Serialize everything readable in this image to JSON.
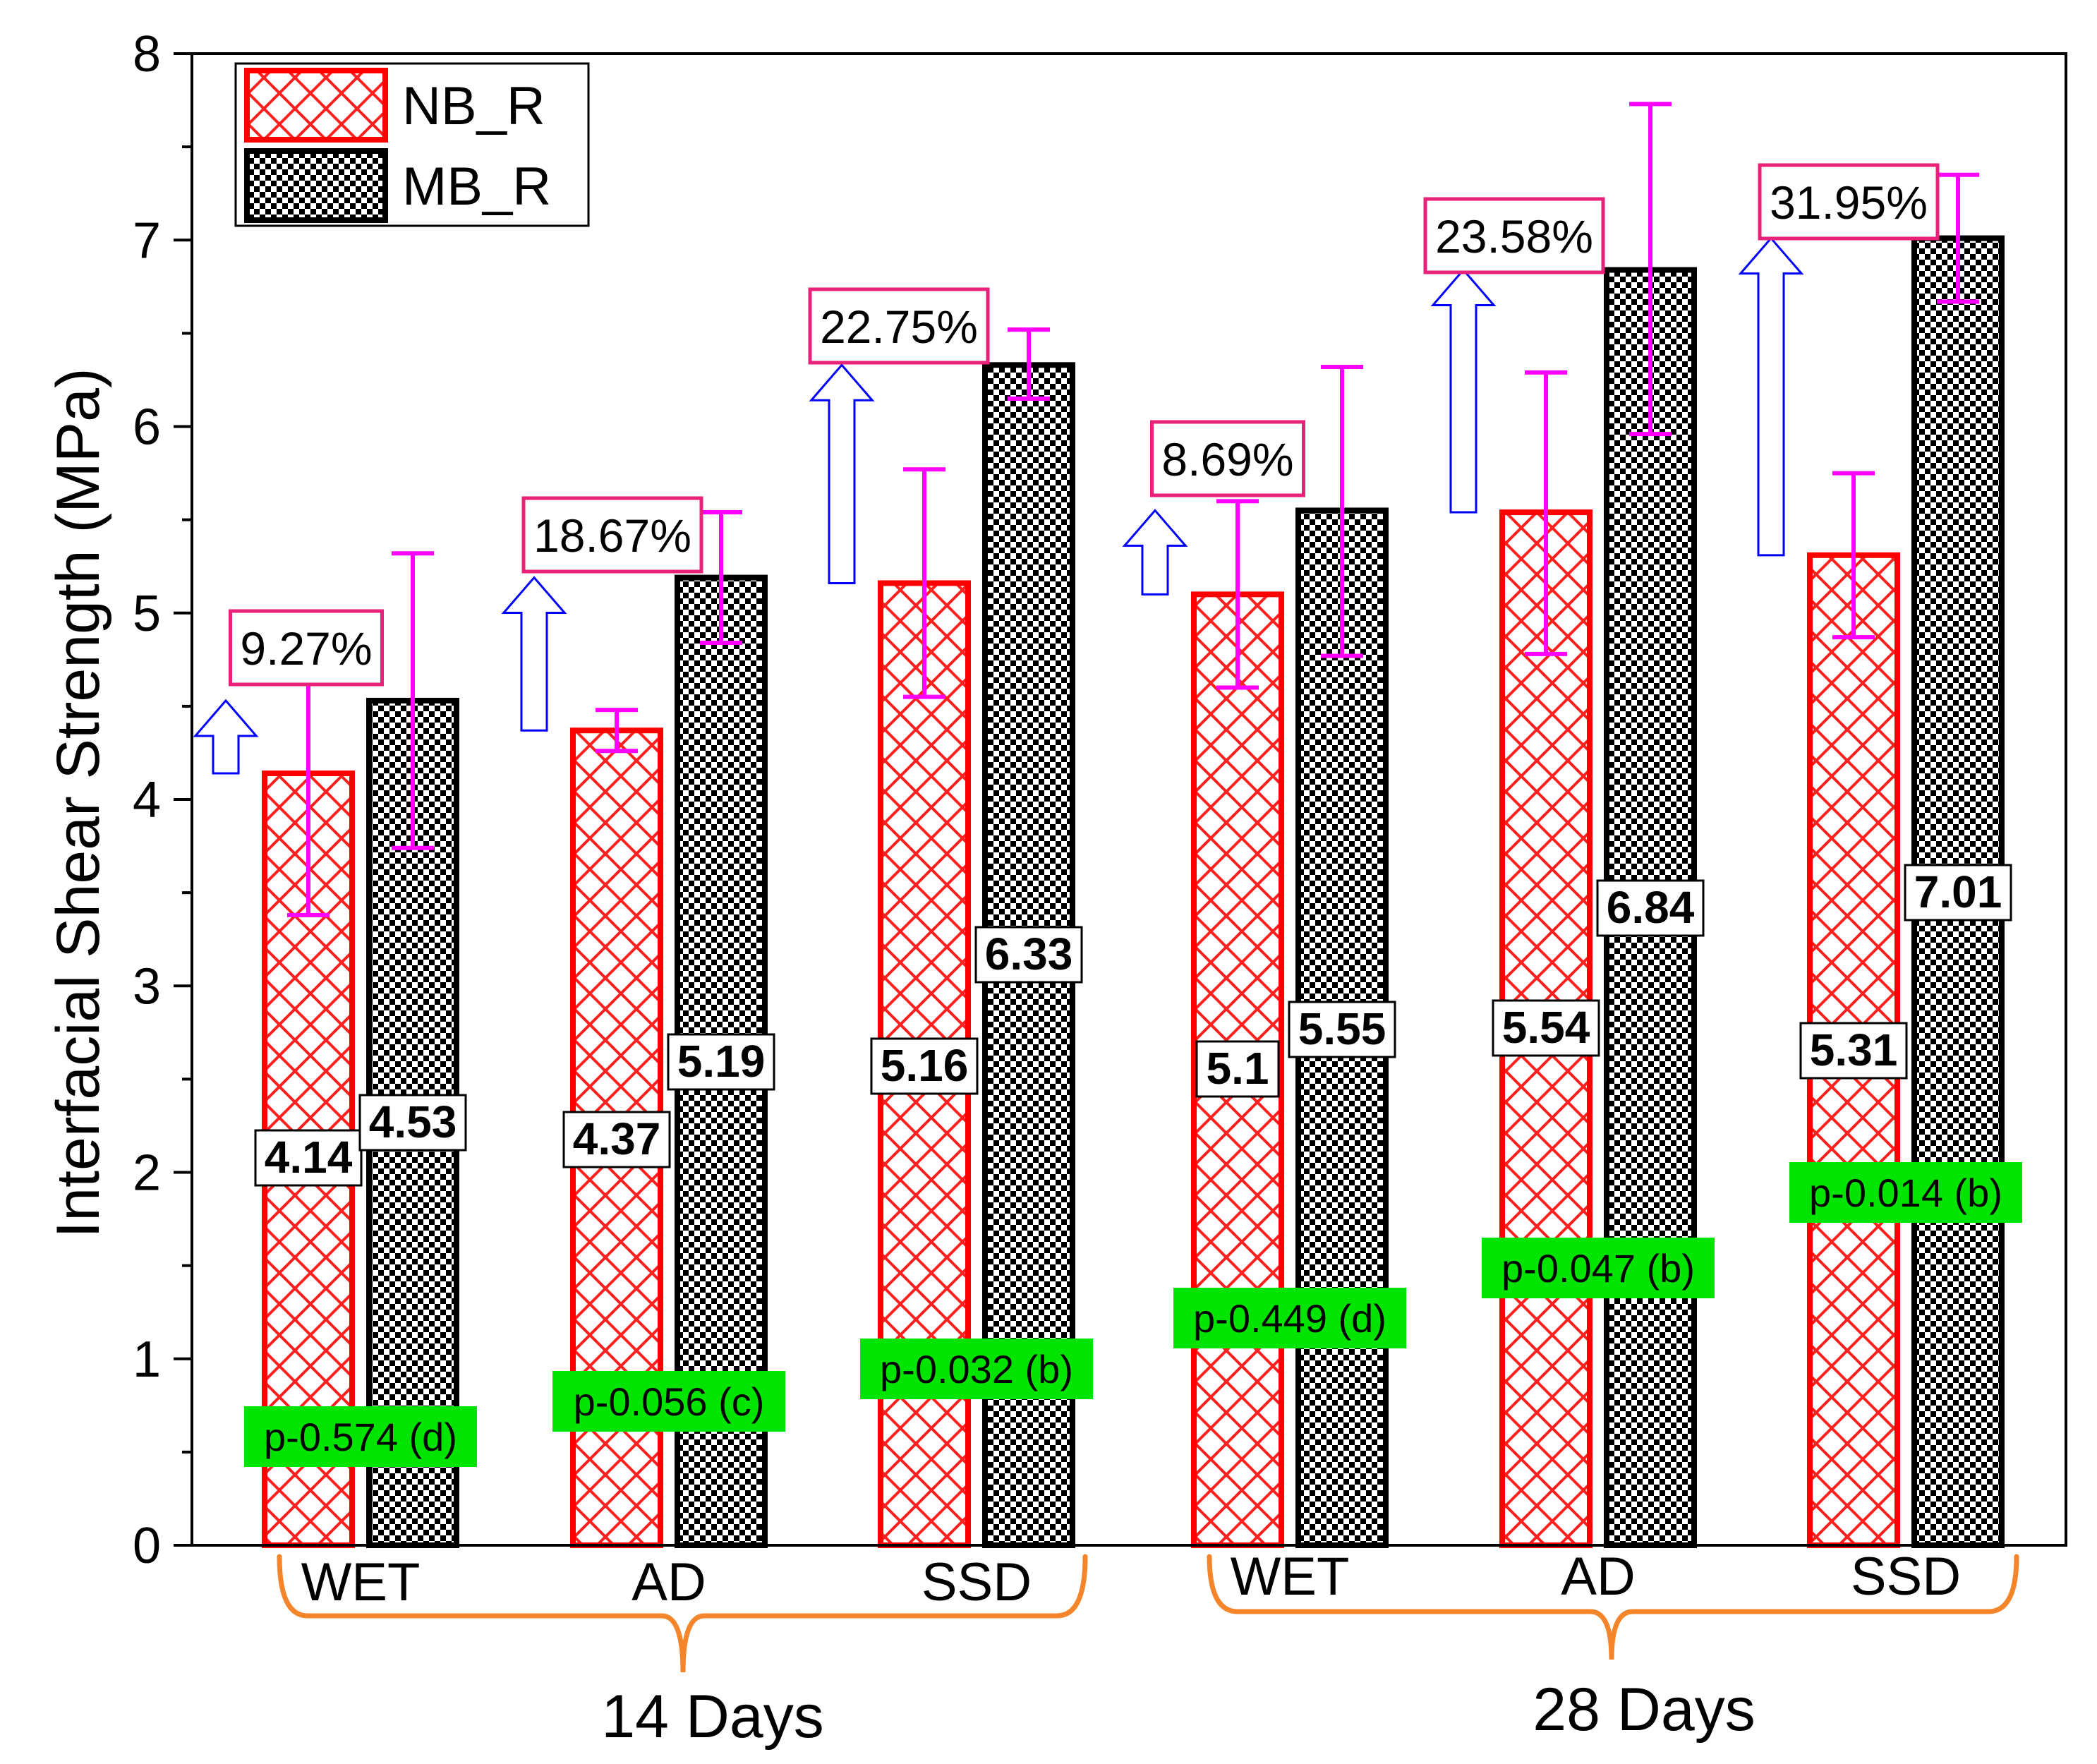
{
  "chart_data": {
    "type": "bar",
    "title": "",
    "ylabel": "Interfacial Shear Strength (MPa)",
    "xlabel": "",
    "ylim": [
      0,
      8
    ],
    "yticks": [
      "0",
      "1",
      "2",
      "3",
      "4",
      "5",
      "6",
      "7",
      "8"
    ],
    "categories": [
      "WET",
      "AD",
      "SSD",
      "WET",
      "AD",
      "SSD"
    ],
    "groups": [
      {
        "label": "14 Days",
        "categories": [
          "WET",
          "AD",
          "SSD"
        ]
      },
      {
        "label": "28 Days",
        "categories": [
          "WET",
          "AD",
          "SSD"
        ]
      }
    ],
    "series": [
      {
        "name": "NB_R",
        "color": "#ff0000",
        "pattern": "crosshatch",
        "values": [
          4.14,
          4.37,
          5.16,
          5.1,
          5.54,
          5.31
        ],
        "labels": [
          "4.14",
          "4.37",
          "5.16",
          "5.1",
          "5.54",
          "5.31"
        ],
        "error_low": [
          3.38,
          4.26,
          4.55,
          4.6,
          4.78,
          4.87
        ],
        "error_high": [
          4.89,
          4.48,
          5.77,
          5.6,
          6.29,
          5.75
        ]
      },
      {
        "name": "MB_R",
        "color": "#000000",
        "pattern": "checker",
        "values": [
          4.53,
          5.19,
          6.33,
          5.55,
          6.84,
          7.01
        ],
        "labels": [
          "4.53",
          "5.19",
          "6.33",
          "5.55",
          "6.84",
          "7.01"
        ],
        "error_low": [
          3.74,
          4.84,
          6.15,
          4.77,
          5.96,
          6.67
        ],
        "error_high": [
          5.32,
          5.54,
          6.52,
          6.32,
          7.73,
          7.35
        ]
      }
    ],
    "increase_labels": [
      "9.27%",
      "18.67%",
      "22.75%",
      "8.69%",
      "23.58%",
      "31.95%"
    ],
    "p_values": [
      "p-0.574 (d)",
      "p-0.056 (c)",
      "p-0.032 (b)",
      "p-0.449 (d)",
      "p-0.047 (b)",
      "p-0.014 (b)"
    ],
    "legend": [
      "NB_R",
      "MB_R"
    ],
    "legend_position": "top-left",
    "colors": {
      "error_bar": "#ff00ff",
      "arrow": "#0000ff",
      "percent_box": "#e8227a",
      "p_value_bg": "#00e400",
      "bracket": "#f5852a"
    }
  }
}
